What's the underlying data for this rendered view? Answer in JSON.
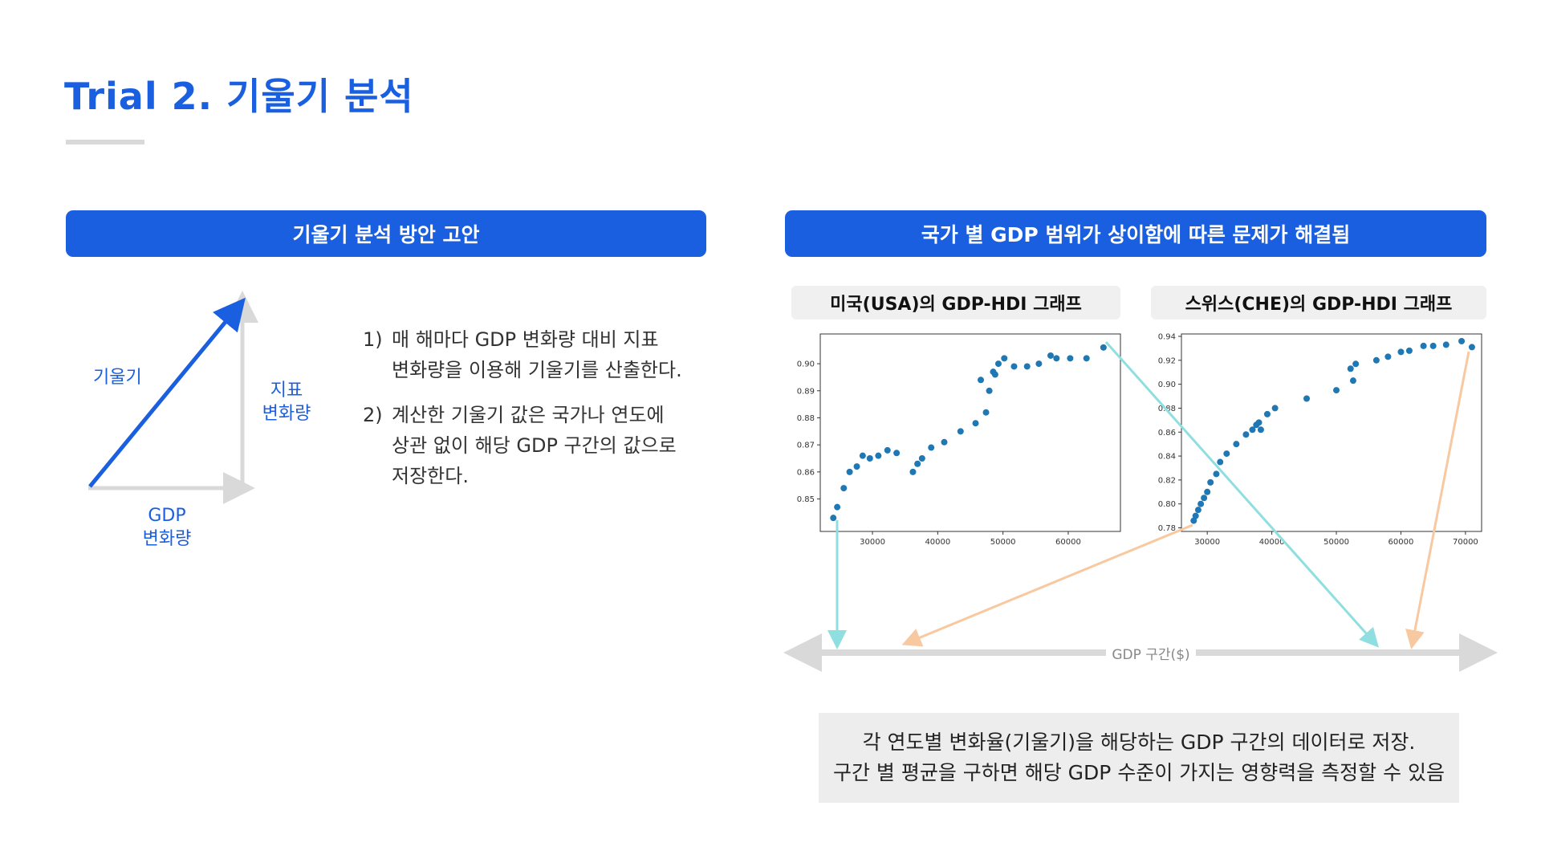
{
  "title": "Trial 2. 기울기 분석",
  "left_panel": {
    "header": "기울기 분석 방안 고안",
    "diagram": {
      "slope_label": "기울기",
      "y_label_line1": "지표",
      "y_label_line2": "변화량",
      "x_label_line1": "GDP",
      "x_label_line2": "변화량"
    },
    "steps": [
      {
        "num": "1)",
        "line1": "매 해마다 GDP 변화량 대비 지표",
        "line2": "변화량을 이용해 기울기를 산출한다."
      },
      {
        "num": "2)",
        "line1": "계산한 기울기 값은 국가나 연도에",
        "line2": "상관 없이 해당 GDP 구간의 값으로",
        "line3": "저장한다."
      }
    ]
  },
  "right_panel": {
    "header": "국가 별 GDP 범위가 상이함에 따른 문제가 해결됨",
    "usa_title": "미국(USA)의 GDP-HDI 그래프",
    "che_title": "스위스(CHE)의 GDP-HDI 그래프",
    "axis_label": "GDP 구간($)",
    "summary_line1": "각 연도별 변화율(기울기)을 해당하는 GDP 구간의 데이터로 저장.",
    "summary_line2": "구간 별 평균을 구하면 해당 GDP 수준이 가지는 영향력을 측정할 수 있음"
  },
  "colors": {
    "accent": "#1a5fe0",
    "point": "#1f77b4",
    "cyan_arrow": "#8fdfe0",
    "orange_arrow": "#f8c8a0",
    "gray_axis": "#d9d9d9"
  },
  "chart_data": [
    {
      "type": "scatter",
      "title": "미국(USA)의 GDP-HDI 그래프",
      "xlim": [
        22000,
        68000
      ],
      "ylim": [
        0.838,
        0.911
      ],
      "xticks": [
        30000,
        40000,
        50000,
        60000
      ],
      "yticks": [
        0.85,
        0.86,
        0.87,
        0.88,
        0.89,
        0.9
      ],
      "ytick_labels": [
        "0.85",
        "0.86",
        "0.87",
        "0.88",
        "0.89",
        "0.90"
      ],
      "x": [
        24000,
        24600,
        25600,
        26500,
        27600,
        28500,
        29600,
        30900,
        32300,
        33700,
        36200,
        36900,
        37600,
        39000,
        41000,
        43500,
        45800,
        46600,
        47400,
        47900,
        48500,
        48800,
        49300,
        50200,
        51700,
        53700,
        55500,
        57300,
        58200,
        60300,
        62800,
        65400
      ],
      "y": [
        0.843,
        0.847,
        0.854,
        0.86,
        0.862,
        0.866,
        0.865,
        0.866,
        0.868,
        0.867,
        0.86,
        0.863,
        0.865,
        0.869,
        0.871,
        0.875,
        0.878,
        0.894,
        0.882,
        0.89,
        0.897,
        0.896,
        0.9,
        0.902,
        0.899,
        0.899,
        0.9,
        0.903,
        0.902,
        0.902,
        0.902,
        0.906
      ]
    },
    {
      "type": "scatter",
      "title": "스위스(CHE)의 GDP-HDI 그래프",
      "xlim": [
        26000,
        72500
      ],
      "ylim": [
        0.777,
        0.942
      ],
      "xticks": [
        30000,
        40000,
        50000,
        60000,
        70000
      ],
      "yticks": [
        0.78,
        0.8,
        0.82,
        0.84,
        0.86,
        0.88,
        0.9,
        0.92,
        0.94
      ],
      "ytick_labels": [
        "0.78",
        "0.80",
        "0.82",
        "0.84",
        "0.86",
        "0.88",
        "0.90",
        "0.92",
        "0.94"
      ],
      "x": [
        27900,
        28200,
        28600,
        29000,
        29500,
        30000,
        30500,
        31400,
        32000,
        33000,
        34500,
        36000,
        37000,
        37600,
        38000,
        38300,
        39300,
        40500,
        45400,
        50000,
        52200,
        52600,
        53000,
        56200,
        58000,
        60000,
        61300,
        63500,
        65000,
        67000,
        69400,
        71000
      ],
      "y": [
        0.786,
        0.79,
        0.795,
        0.8,
        0.805,
        0.81,
        0.818,
        0.825,
        0.835,
        0.842,
        0.85,
        0.858,
        0.862,
        0.866,
        0.868,
        0.862,
        0.875,
        0.88,
        0.888,
        0.895,
        0.913,
        0.903,
        0.917,
        0.92,
        0.923,
        0.927,
        0.928,
        0.932,
        0.932,
        0.933,
        0.936,
        0.931
      ]
    }
  ]
}
